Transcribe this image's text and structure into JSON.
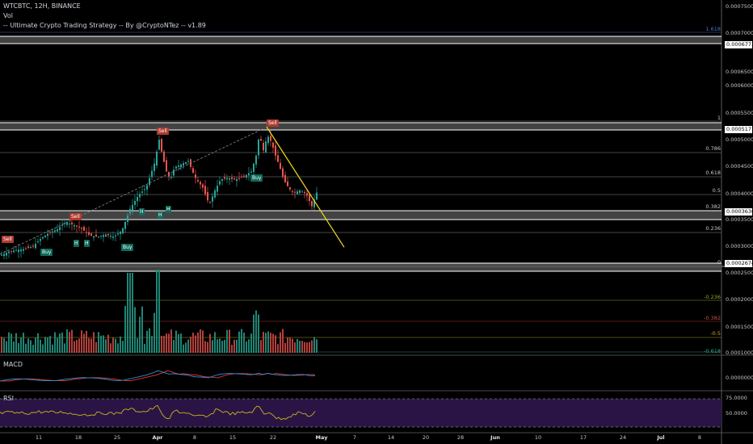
{
  "header": {
    "symbol_line": "WTCBTC, 12H, BINANCE",
    "vol_label": "Vol",
    "strategy_line": "-- Ultimate Crypto Trading Strategy -- By @CryptoNTez -- v1.89"
  },
  "price_axis": {
    "labels": [
      "0.0007500",
      "0.0007000",
      "0.0006500",
      "0.0006000",
      "0.0005500",
      "0.0005000",
      "0.0004500",
      "0.0004000",
      "0.0003500",
      "0.0003000"
    ],
    "boxes": [
      "0.0006773",
      "0.0005171",
      "0.0003630",
      "0.0002674"
    ]
  },
  "volume_axis": {
    "labels": [
      "0.0002500",
      "0.0002000",
      "0.0001500",
      "0.0001000"
    ]
  },
  "macd_axis": {
    "label": "MACD",
    "labels": [
      "0.0000000"
    ]
  },
  "rsi_axis": {
    "label": "RSI",
    "labels": [
      "75.0000",
      "50.0000"
    ]
  },
  "fib_levels": {
    "main": [
      "1.618",
      "1",
      "0.786",
      "0.618",
      "0.5",
      "0.382",
      "0.236",
      "0"
    ],
    "volume": [
      "-0.236",
      "-0.382",
      "-0.5",
      "-0.618"
    ]
  },
  "signals": {
    "sell": "Sell",
    "buy": "Buy",
    "h": "H"
  },
  "x_axis": {
    "labels": [
      "11",
      "18",
      "25",
      "Apr",
      "8",
      "15",
      "22",
      "May",
      "7",
      "14",
      "20",
      "28",
      "Jun",
      "10",
      "17",
      "24",
      "Jul",
      "8"
    ],
    "bold": [
      "Apr",
      "May",
      "Jun",
      "Jul"
    ]
  },
  "colors": {
    "background": "#000000",
    "up": "#26a69a",
    "down": "#ef5350",
    "trendline": "#e8d21d",
    "macd": "#2e8fd8",
    "signal": "#e53935",
    "rsi": "#c9b61a",
    "rsi_band": "#2a1446"
  },
  "chart_data": {
    "type": "candlestick",
    "symbol": "WTCBTC",
    "interval": "12H",
    "exchange": "BINANCE",
    "x": [
      "11",
      "18",
      "25",
      "Apr",
      "8",
      "15",
      "22",
      "May",
      "7",
      "14",
      "20",
      "28",
      "Jun",
      "10",
      "17",
      "24",
      "Jul",
      "8"
    ],
    "ylim": [
      0.00026,
      0.00076
    ],
    "key_price_levels": [
      0.0006773,
      0.0005171,
      0.000363,
      0.0002674
    ],
    "price_path": [
      [
        0,
        0.000283
      ],
      [
        10,
        0.00029
      ],
      [
        20,
        0.000293
      ],
      [
        30,
        0.000295
      ],
      [
        40,
        0.0003
      ],
      [
        50,
        0.000315
      ],
      [
        60,
        0.000325
      ],
      [
        70,
        0.000332
      ],
      [
        80,
        0.000345
      ],
      [
        90,
        0.00034
      ],
      [
        100,
        0.000333
      ],
      [
        110,
        0.00032
      ],
      [
        120,
        0.000318
      ],
      [
        130,
        0.000322
      ],
      [
        140,
        0.000318
      ],
      [
        150,
        0.00033
      ],
      [
        160,
        0.00037
      ],
      [
        170,
        0.000395
      ],
      [
        180,
        0.00041
      ],
      [
        190,
        0.000455
      ],
      [
        196,
        0.0005
      ],
      [
        200,
        0.00047
      ],
      [
        205,
        0.00044
      ],
      [
        210,
        0.000425
      ],
      [
        215,
        0.000448
      ],
      [
        225,
        0.000455
      ],
      [
        232,
        0.00046
      ],
      [
        240,
        0.00043
      ],
      [
        250,
        0.00041
      ],
      [
        258,
        0.000378
      ],
      [
        265,
        0.000405
      ],
      [
        272,
        0.000425
      ],
      [
        280,
        0.000428
      ],
      [
        290,
        0.000425
      ],
      [
        300,
        0.00043
      ],
      [
        310,
        0.00044
      ],
      [
        316,
        0.00047
      ],
      [
        320,
        0.00051
      ],
      [
        325,
        0.00048
      ],
      [
        330,
        0.000508
      ],
      [
        335,
        0.000495
      ],
      [
        340,
        0.00047
      ],
      [
        345,
        0.00045
      ],
      [
        350,
        0.000425
      ],
      [
        356,
        0.00041
      ],
      [
        362,
        0.0004
      ],
      [
        370,
        0.000405
      ],
      [
        378,
        0.000398
      ],
      [
        385,
        0.000375
      ],
      [
        392,
        0.000405
      ]
    ],
    "trendline": [
      [
        330,
        0.000524
      ],
      [
        426,
        0.000298
      ]
    ],
    "volume_scale": [
      0.0001,
      0.00026
    ],
    "rsi_levels": [
      75,
      50
    ]
  }
}
